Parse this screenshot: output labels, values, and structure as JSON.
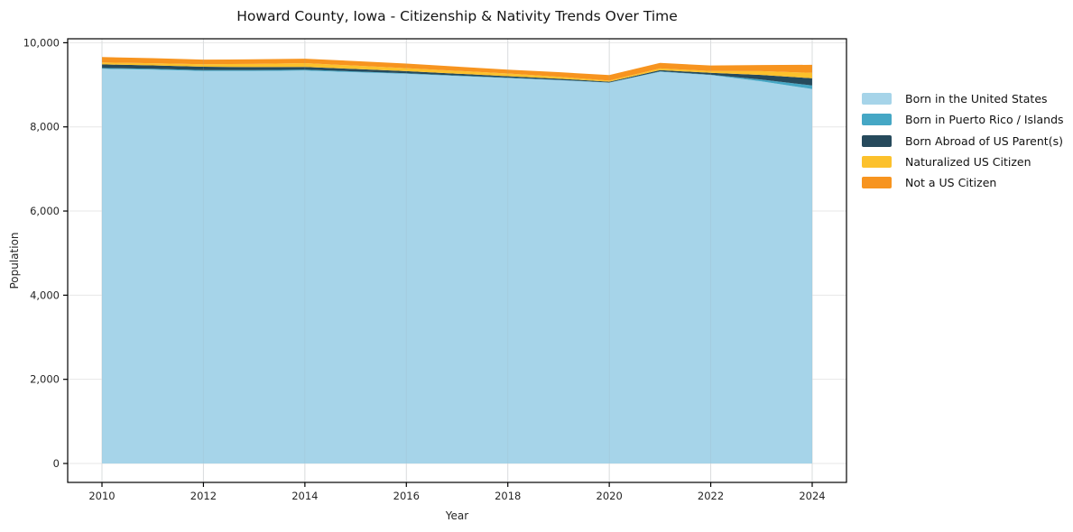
{
  "chart": {
    "title": "Howard County, Iowa - Citizenship & Nativity Trends Over Time",
    "xlabel": "Year",
    "ylabel": "Population"
  },
  "colors": {
    "background": "#ffffff",
    "grid": "#e7e7e7",
    "axis": "#000000",
    "tick_text": "#262626"
  },
  "chart_data": {
    "type": "area",
    "stacked": true,
    "title": "Howard County, Iowa - Citizenship & Nativity Trends Over Time",
    "xlabel": "Year",
    "ylabel": "Population",
    "grid": true,
    "legend_position": "right-outside",
    "x": [
      2010,
      2011,
      2012,
      2013,
      2014,
      2015,
      2016,
      2017,
      2018,
      2019,
      2020,
      2021,
      2022,
      2023,
      2024
    ],
    "x_ticks": [
      2010,
      2012,
      2014,
      2016,
      2018,
      2020,
      2022,
      2024
    ],
    "x_tick_labels": [
      "2010",
      "2012",
      "2014",
      "2016",
      "2018",
      "2020",
      "2022",
      "2024"
    ],
    "y_ticks": [
      0,
      2000,
      4000,
      6000,
      8000,
      10000
    ],
    "y_tick_labels": [
      "0",
      "2,000",
      "4,000",
      "6,000",
      "8,000",
      "10,000"
    ],
    "ylim": [
      0,
      10000
    ],
    "series": [
      {
        "name": "Born in the United States",
        "color": "#a6d4e9",
        "values": [
          9380,
          9360,
          9330,
          9330,
          9340,
          9300,
          9260,
          9210,
          9160,
          9110,
          9050,
          9310,
          9230,
          9080,
          8900
        ]
      },
      {
        "name": "Born in Puerto Rico / Islands",
        "color": "#45a7c5",
        "values": [
          20,
          20,
          20,
          20,
          20,
          18,
          15,
          12,
          10,
          8,
          5,
          10,
          10,
          45,
          85
        ]
      },
      {
        "name": "Born Abroad of US Parent(s)",
        "color": "#264a5c",
        "values": [
          85,
          82,
          80,
          72,
          65,
          58,
          50,
          42,
          35,
          28,
          20,
          30,
          45,
          110,
          170
        ]
      },
      {
        "name": "Naturalized US Citizen",
        "color": "#fcc12c",
        "values": [
          45,
          52,
          60,
          75,
          90,
          80,
          70,
          68,
          65,
          45,
          25,
          40,
          45,
          90,
          130
        ]
      },
      {
        "name": "Not a US Citizen",
        "color": "#f7941f",
        "values": [
          130,
          120,
          110,
          108,
          105,
          108,
          110,
          100,
          90,
          110,
          130,
          130,
          130,
          145,
          190
        ]
      }
    ]
  }
}
